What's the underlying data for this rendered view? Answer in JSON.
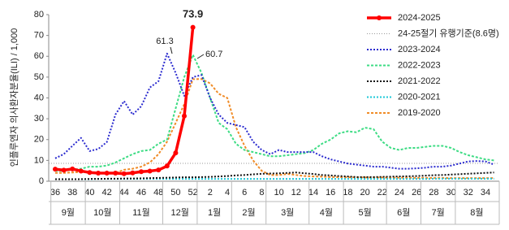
{
  "chart_data": {
    "type": "line",
    "y_label": "인플루엔자 의사환자분율(ILI) / 1,000",
    "categories": [
      "36",
      null,
      "38",
      null,
      "40",
      null,
      "42",
      null,
      "44",
      null,
      "46",
      null,
      "48",
      null,
      "50",
      null,
      "52",
      null,
      "2",
      null,
      "4",
      null,
      "6",
      null,
      "8",
      null,
      "10",
      null,
      "12",
      null,
      "14",
      null,
      "16",
      null,
      "18",
      null,
      "20",
      null,
      "22",
      null,
      "24",
      null,
      "26",
      null,
      "28",
      null,
      "30",
      null,
      "32",
      null,
      "34",
      null
    ],
    "month_labels": [
      "9월",
      "10월",
      "11월",
      "12월",
      "1월",
      "2월",
      "3월",
      "4월",
      "5월",
      "6월",
      "7월",
      "8월"
    ],
    "ylim": [
      0,
      80
    ],
    "yticks": [
      0,
      10,
      20,
      30,
      40,
      50,
      60,
      70,
      80
    ],
    "legend": "top-right",
    "threshold": {
      "name": "24-25절기 유행기준(8.6명)",
      "value": 8.6,
      "color": "#999999"
    },
    "series": [
      {
        "name": "2024-2025",
        "color": "#ff0000",
        "values": [
          5.8,
          5.3,
          5.9,
          4.9,
          4.2,
          3.9,
          3.9,
          3.9,
          3.6,
          4.0,
          4.6,
          4.9,
          5.4,
          7.3,
          13.6,
          31.3,
          73.9,
          null,
          null,
          null,
          null,
          null,
          null,
          null,
          null,
          null,
          null,
          null,
          null,
          null,
          null,
          null,
          null,
          null,
          null,
          null,
          null,
          null,
          null,
          null,
          null,
          null,
          null,
          null,
          null,
          null,
          null,
          null,
          null,
          null,
          null,
          null
        ]
      },
      {
        "name": "2023-2024",
        "color": "#2b2bcf",
        "values": [
          11,
          13,
          17,
          20.8,
          14.5,
          15.5,
          18.8,
          32,
          38.5,
          32,
          36,
          45,
          48,
          61.3,
          52,
          41,
          50,
          51,
          40,
          32,
          28,
          27,
          26,
          19,
          15,
          13,
          15,
          14,
          14,
          14,
          14,
          12,
          10.5,
          9.5,
          8.5,
          8,
          7.5,
          7,
          7,
          6.5,
          6,
          6,
          6.2,
          6.5,
          7,
          7,
          7.5,
          8.5,
          9.5,
          9.7,
          9.5,
          8
        ]
      },
      {
        "name": "2022-2023",
        "color": "#3ddc84",
        "values": [
          5,
          5,
          5.5,
          6,
          7,
          7,
          7.5,
          9,
          11,
          13,
          14.5,
          15,
          18,
          20,
          35,
          50,
          60.7,
          52,
          40,
          28,
          25,
          18,
          15,
          14,
          13,
          12,
          12,
          12.5,
          13,
          13.5,
          15,
          18,
          20,
          23,
          24,
          23.5,
          25.7,
          25,
          19,
          16,
          15,
          16,
          16,
          16.5,
          17,
          17,
          16,
          14,
          12.5,
          11.5,
          10.5,
          10
        ]
      },
      {
        "name": "2021-2022",
        "color": "#111111",
        "values": [
          1,
          1,
          1,
          1,
          1.1,
          1.1,
          1.2,
          1.2,
          1.3,
          1.3,
          1.4,
          1.5,
          1.6,
          1.7,
          1.8,
          1.9,
          1.9,
          2,
          2.1,
          2.3,
          2.5,
          2.8,
          3,
          3.3,
          3.6,
          3.7,
          3.8,
          4,
          4.2,
          3.8,
          3.5,
          3,
          2.8,
          2.5,
          2.3,
          2,
          2,
          2,
          2.1,
          2.2,
          2.3,
          2.4,
          2.5,
          2.7,
          2.9,
          3,
          3.2,
          3.4,
          3.6,
          3.8,
          4,
          4.2
        ]
      },
      {
        "name": "2020-2021",
        "color": "#1ec8d8",
        "values": [
          1,
          1,
          1,
          1,
          1,
          1.1,
          1.1,
          1.1,
          1.1,
          1.1,
          1.1,
          1.1,
          1.1,
          1.1,
          1.1,
          1.1,
          1.1,
          1.1,
          1.1,
          1.1,
          1.1,
          1.1,
          1.1,
          1.1,
          1.1,
          1.1,
          1.1,
          1.1,
          1.1,
          1.1,
          1.1,
          1.1,
          1.1,
          1.1,
          1.1,
          1.1,
          1.1,
          1.1,
          1.1,
          1.1,
          1.1,
          1.1,
          1.1,
          1.1,
          1.2,
          1.2,
          1.2,
          1.2,
          1.2,
          1.2,
          1.2,
          1.2
        ]
      },
      {
        "name": "2019-2020",
        "color": "#f08c28",
        "values": [
          4,
          4,
          4.2,
          4.5,
          4.3,
          4,
          3.9,
          4,
          5.5,
          6,
          7,
          9,
          13,
          19,
          28,
          37,
          49,
          49.1,
          47,
          42,
          40,
          26,
          17,
          10,
          5,
          3,
          3,
          3.5,
          3,
          2.5,
          2.3,
          2.2,
          2,
          2,
          1.9,
          1.9,
          1.8,
          1.8,
          1.8,
          1.7,
          1.7,
          1.7,
          1.6,
          1.6,
          1.6,
          1.6,
          1.5,
          1.5,
          1.5,
          1.5,
          1.5,
          1.5
        ]
      }
    ]
  }
}
